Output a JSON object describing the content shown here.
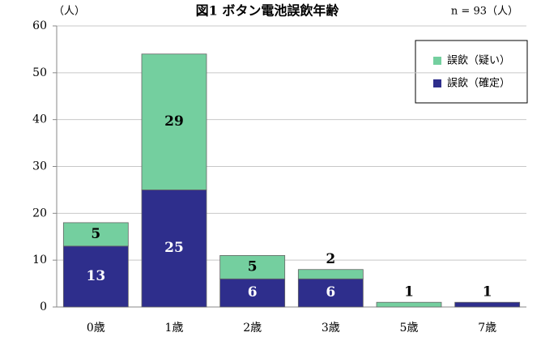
{
  "chart_data": {
    "type": "stacked-bar",
    "title": "図1 ボタン電池誤飲年齢",
    "y_unit": "（人）",
    "note": "n = 93（人）",
    "categories": [
      "0歳",
      "1歳",
      "2歳",
      "3歳",
      "5歳",
      "7歳"
    ],
    "series": [
      {
        "name": "誤飲（確定）",
        "color": "#2e2e8c",
        "values": [
          13,
          25,
          6,
          6,
          0,
          1
        ]
      },
      {
        "name": "誤飲（疑い）",
        "color": "#74cf9f",
        "values": [
          5,
          29,
          5,
          2,
          1,
          0
        ]
      }
    ],
    "ylim": [
      0,
      60
    ],
    "yticks": [
      0,
      10,
      20,
      30,
      40,
      50,
      60
    ],
    "grid": true
  }
}
